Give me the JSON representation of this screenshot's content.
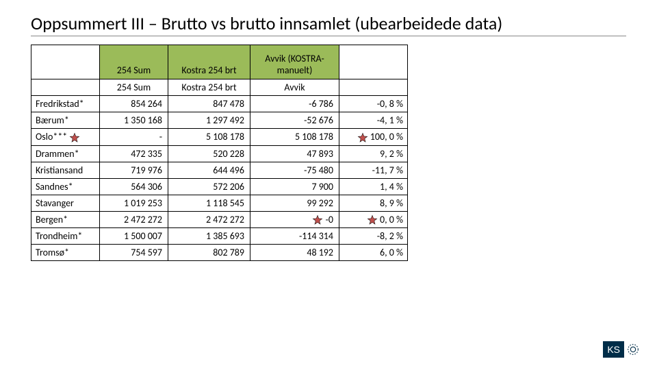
{
  "title": "Oppsummert III – Brutto vs brutto innsamlet (ubearbeidede data)",
  "colors": {
    "header_bg": "#9bbb59",
    "star_fill": "#c0504d",
    "star_stroke": "#000000",
    "logo_bg": "#002d48"
  },
  "table": {
    "header1": {
      "c1": "254 Sum",
      "c2": "Kostra 254 brt",
      "c3": "Avvik (KOSTRA-manuelt)"
    },
    "header2": {
      "c1": "254 Sum",
      "c2": "Kostra 254 brt",
      "c3": "Avvik"
    },
    "rows": [
      {
        "city": "Fredrikstad*",
        "sum": "854 264",
        "kostra": "847 478",
        "avvik": "-6 786",
        "pct": "-0, 8 %"
      },
      {
        "city": "Bærum*",
        "sum": "1 350 168",
        "kostra": "1 297 492",
        "avvik": "-52 676",
        "pct": "-4, 1 %"
      },
      {
        "city": "Oslo***",
        "star_city": true,
        "sum": "-",
        "kostra": "5 108 178",
        "avvik": "5 108 178",
        "star_pct": true,
        "pct": "100, 0 %"
      },
      {
        "city": "Drammen*",
        "sum": "472 335",
        "kostra": "520 228",
        "avvik": "47 893",
        "pct": "9, 2 %"
      },
      {
        "city": "Kristiansand",
        "sum": "719 976",
        "kostra": "644 496",
        "avvik": "-75 480",
        "pct": "-11, 7 %"
      },
      {
        "city": "Sandnes*",
        "sum": "564 306",
        "kostra": "572 206",
        "avvik": "7 900",
        "pct": "1, 4 %"
      },
      {
        "city": "Stavanger",
        "sum": "1 019 253",
        "kostra": "1 118 545",
        "avvik": "99 292",
        "pct": "8, 9 %"
      },
      {
        "city": "Bergen*",
        "sum": "2 472 272",
        "kostra": "2 472 272",
        "star_avvik": true,
        "avvik": "-0",
        "star_pct": true,
        "pct": "0, 0 %"
      },
      {
        "city": "Trondheim*",
        "sum": "1 500 007",
        "kostra": "1 385 693",
        "avvik": "-114 314",
        "pct": "-8, 2 %"
      },
      {
        "city": "Tromsø*",
        "sum": "754 597",
        "kostra": "802 789",
        "avvik": "48 192",
        "pct": "6, 0 %"
      }
    ]
  },
  "logo": {
    "text": "KS"
  }
}
